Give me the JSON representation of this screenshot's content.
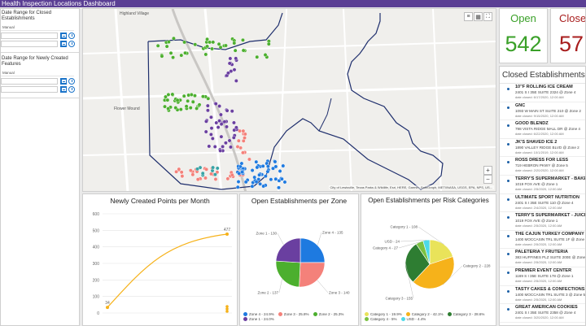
{
  "header": {
    "title": "Health Inspection Locations Dashboard"
  },
  "filters": [
    {
      "title": "Date Range for Closed Establishments",
      "select": "Manual"
    },
    {
      "title": "Date Range for Newly Created Features",
      "select": "Manual"
    }
  ],
  "map": {
    "places": [
      "Highland Village",
      "Flower Mound"
    ],
    "attribution": "City of Lewisville, Texas Parks & Wildlife, Esri, HERE, Garmin, SafeGraph, METI/NASA, USGS, EPA, NPS, US...",
    "zoom_in": "+",
    "zoom_out": "−",
    "zone_colors": {
      "zone1": "#38a3a5",
      "zone2": "#4caf2e",
      "zone3": "#f4817a",
      "zone4": "#1e7ae0",
      "zone5": "#6a3fa0"
    }
  },
  "open": {
    "label": "Open",
    "value": "542",
    "color": "#3aa028"
  },
  "closed": {
    "label": "Closed",
    "value": "57",
    "color": "#a81d1d"
  },
  "closed_list": {
    "title": "Closed Establishments",
    "items": [
      {
        "name": "10\"F ROLLING ICE CREAM",
        "addr": "2401 S I 35E SUITE 2324 @ Zone 4",
        "date": "date closed: 6/17/2020, 12:00 AM"
      },
      {
        "name": "GNC",
        "addr": "1093 W MAIN ST SUITE 210 @ Zone 2",
        "date": "date closed: 9/15/2020, 12:00 AM"
      },
      {
        "name": "GOOD BLENDZ",
        "addr": "798 VISTA RIDGE MALL DR @ Zone 4",
        "date": "date closed: 6/22/2020, 12:00 AM"
      },
      {
        "name": "JK'S SHAVED ICE 2",
        "addr": "1890 VALLEY RIDGE BLVD @ Zone 2",
        "date": "date closed: 10/1/2019, 12:00 AM"
      },
      {
        "name": "ROSS DRESS FOR LESS",
        "addr": "719 HEBRON PKWY @ Zone 5",
        "date": "date closed: 2/20/2020, 12:00 AM"
      },
      {
        "name": "TERRY'S SUPERMARKET - BAKERY",
        "addr": "1019 FOX AVE @ Zone 1",
        "date": "date closed: 2/5/2020, 12:00 AM"
      },
      {
        "name": "ULTIMATE SPORT NUTRITION",
        "addr": "2401 S I 35E SUITE 110 @ Zone 4",
        "date": "date closed: 2/4/2020, 12:00 AM"
      },
      {
        "name": "TERRY'S SUPERMARKET - JUICE BAR",
        "addr": "1019 FOX AVE @ Zone 1",
        "date": "date closed: 2/5/2020, 12:00 AM"
      },
      {
        "name": "THE CAJUN TURKEY COMPANY",
        "addr": "1400 MOCCASIN TRL SUITE 1F @ Zone 5",
        "date": "date closed: 2/5/2020, 12:00 AM"
      },
      {
        "name": "PALETERIA Y FRUTERIA",
        "addr": "383 HUFFINES PLZ SUITE 200E @ Zone 2",
        "date": "date closed: 2/5/2020, 12:00 AM"
      },
      {
        "name": "PREMIER EVENT CENTER",
        "addr": "1169 S I 35E SUITE 178 @ Zone 1",
        "date": "date closed: 2/5/2020, 12:00 AM"
      },
      {
        "name": "TASTY CAKES & CONFECTIONS",
        "addr": "1400 MOCCASIN TRL SUITE 3 @ Zone 5",
        "date": "date closed: 2/5/2020, 12:00 AM"
      },
      {
        "name": "GREAT AMERICAN COOKIES",
        "addr": "2401 S I 35E SUITE 2358 @ Zone 4",
        "date": "date closed: 3/20/2020, 12:00 AM"
      }
    ]
  },
  "chart_data": [
    {
      "type": "line",
      "title": "Newly Created Points per Month",
      "ylim": [
        0,
        600
      ],
      "yticks": [
        "600",
        "500",
        "400",
        "300",
        "200",
        "100",
        "0"
      ],
      "x": [
        "Jun",
        "Jul",
        "Aug",
        "Sep",
        "Oct",
        "Nov",
        "Dec"
      ],
      "values": [
        34,
        250,
        330,
        380,
        420,
        455,
        477
      ],
      "first_label": "34",
      "last_label": "477",
      "color": "#f6b21a"
    },
    {
      "type": "pie",
      "title": "Open Establishments per Zone",
      "slices": [
        {
          "label": "Zone 4 - 135",
          "legend": "Zone 4 - 24.9%",
          "value": 135,
          "color": "#1e7ae0"
        },
        {
          "label": "Zone 3 - 140",
          "legend": "Zone 3 - 25.8%",
          "value": 140,
          "color": "#f4817a"
        },
        {
          "label": "Zone 2 - 137",
          "legend": "Zone 2 - 25.3%",
          "value": 137,
          "color": "#4caf2e"
        },
        {
          "label": "Zone 1 - 130",
          "legend": "Zone 1 - 24.0%",
          "value": 130,
          "color": "#6a3fa0"
        }
      ]
    },
    {
      "type": "pie",
      "title": "Open Establishments per Risk Categories",
      "slices": [
        {
          "label": "Category 1 - 108",
          "legend": "Category 1 - 19.9%",
          "value": 108,
          "color": "#e9e35a"
        },
        {
          "label": "Category 2 - 228",
          "legend": "Category 2 - 42.1%",
          "value": 228,
          "color": "#f6b21a"
        },
        {
          "label": "Category 3 - 155",
          "legend": "Category 3 - 28.6%",
          "value": 155,
          "color": "#2e7d32"
        },
        {
          "label": "Category 4 - 27",
          "legend": "Category 4 - 5%",
          "value": 27,
          "color": "#7bc142"
        },
        {
          "label": "USD - 24",
          "legend": "USD - 4.4%",
          "value": 24,
          "color": "#4dd9e8"
        }
      ]
    }
  ]
}
